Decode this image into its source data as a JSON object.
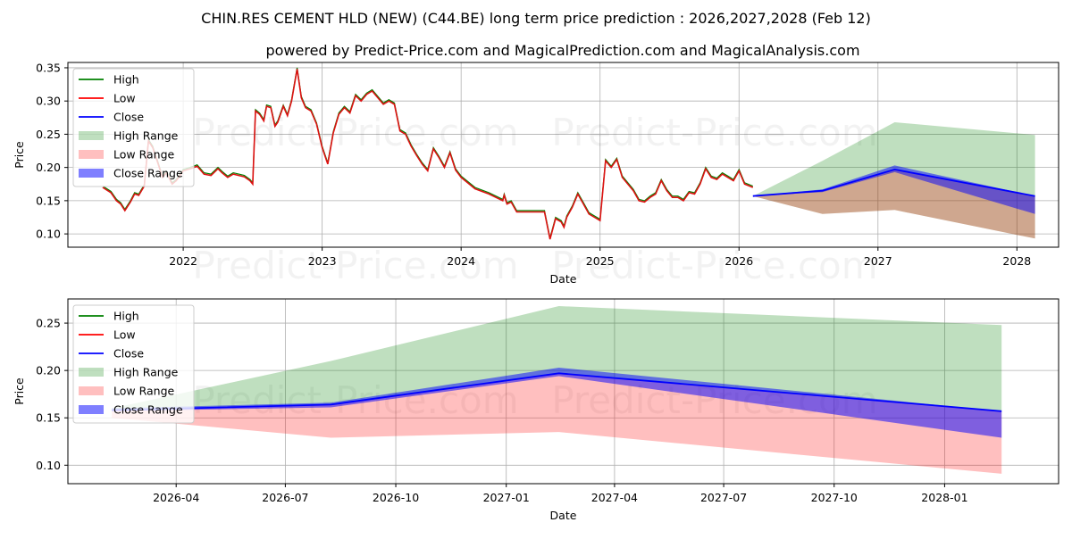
{
  "title": "CHIN.RES CEMENT HLD (NEW) (C44.BE) long term price prediction : 2026,2027,2028 (Feb 12)",
  "subtitle": "powered by Predict-Price.com and MagicalPrediction.com and MagicalAnalysis.com",
  "watermark": "Predict-Price.com",
  "colors": {
    "high": "#008000",
    "low": "#ff0000",
    "close": "#0000ff",
    "high_range": "#008000",
    "low_range": "#ff0000",
    "close_range": "#0000ff",
    "grid": "#b0b0b0"
  },
  "chart_data": [
    {
      "type": "line",
      "id": "history",
      "xlabel": "Date",
      "ylabel": "Price",
      "xlim": [
        2021.17,
        2028.3
      ],
      "ylim": [
        0.08,
        0.358
      ],
      "grid": true,
      "legend_position": "top-left",
      "xticks": [
        {
          "value": 2022,
          "label": "2022"
        },
        {
          "value": 2023,
          "label": "2023"
        },
        {
          "value": 2024,
          "label": "2024"
        },
        {
          "value": 2025,
          "label": "2025"
        },
        {
          "value": 2026,
          "label": "2026"
        },
        {
          "value": 2027,
          "label": "2027"
        },
        {
          "value": 2028,
          "label": "2028"
        }
      ],
      "yticks": [
        {
          "value": 0.1,
          "label": "0.10"
        },
        {
          "value": 0.15,
          "label": "0.15"
        },
        {
          "value": 0.2,
          "label": "0.20"
        },
        {
          "value": 0.25,
          "label": "0.25"
        },
        {
          "value": 0.3,
          "label": "0.30"
        },
        {
          "value": 0.35,
          "label": "0.35"
        }
      ],
      "legend": [
        "High",
        "Low",
        "Close",
        "High Range",
        "Low Range",
        "Close Range"
      ],
      "history_x": [
        2021.42,
        2021.48,
        2021.52,
        2021.55,
        2021.58,
        2021.62,
        2021.65,
        2021.68,
        2021.72,
        2021.75,
        2021.78,
        2021.82,
        2021.85,
        2021.88,
        2021.92,
        2021.95,
        2022.0,
        2022.05,
        2022.1,
        2022.15,
        2022.2,
        2022.25,
        2022.28,
        2022.32,
        2022.36,
        2022.4,
        2022.44,
        2022.48,
        2022.5,
        2022.52,
        2022.55,
        2022.58,
        2022.6,
        2022.63,
        2022.66,
        2022.68,
        2022.7,
        2022.72,
        2022.75,
        2022.78,
        2022.82,
        2022.85,
        2022.88,
        2022.92,
        2022.96,
        2023.0,
        2023.04,
        2023.08,
        2023.12,
        2023.16,
        2023.2,
        2023.24,
        2023.28,
        2023.32,
        2023.36,
        2023.4,
        2023.44,
        2023.48,
        2023.52,
        2023.56,
        2023.6,
        2023.64,
        2023.68,
        2023.72,
        2023.76,
        2023.8,
        2023.84,
        2023.88,
        2023.92,
        2023.96,
        2024.0,
        2024.1,
        2024.2,
        2024.3,
        2024.31,
        2024.33,
        2024.36,
        2024.4,
        2024.44,
        2024.48,
        2024.52,
        2024.56,
        2024.6,
        2024.64,
        2024.68,
        2024.72,
        2024.74,
        2024.76,
        2024.8,
        2024.84,
        2024.88,
        2024.92,
        2024.96,
        2025.0,
        2025.04,
        2025.08,
        2025.12,
        2025.16,
        2025.2,
        2025.24,
        2025.28,
        2025.32,
        2025.36,
        2025.4,
        2025.44,
        2025.48,
        2025.52,
        2025.56,
        2025.6,
        2025.64,
        2025.68,
        2025.72,
        2025.76,
        2025.8,
        2025.84,
        2025.88,
        2025.92,
        2025.96,
        2026.0,
        2026.04,
        2026.1
      ],
      "history_y": [
        0.17,
        0.162,
        0.15,
        0.145,
        0.135,
        0.148,
        0.16,
        0.158,
        0.172,
        0.24,
        0.23,
        0.205,
        0.185,
        0.192,
        0.175,
        0.18,
        0.195,
        0.198,
        0.202,
        0.19,
        0.188,
        0.198,
        0.192,
        0.185,
        0.19,
        0.188,
        0.186,
        0.18,
        0.175,
        0.285,
        0.28,
        0.27,
        0.292,
        0.29,
        0.262,
        0.268,
        0.28,
        0.292,
        0.278,
        0.3,
        0.348,
        0.305,
        0.29,
        0.285,
        0.265,
        0.23,
        0.205,
        0.252,
        0.28,
        0.29,
        0.282,
        0.308,
        0.3,
        0.31,
        0.315,
        0.305,
        0.295,
        0.3,
        0.295,
        0.255,
        0.25,
        0.232,
        0.218,
        0.205,
        0.195,
        0.228,
        0.215,
        0.2,
        0.222,
        0.196,
        0.185,
        0.168,
        0.16,
        0.15,
        0.158,
        0.145,
        0.148,
        0.133,
        0.133,
        0.133,
        0.133,
        0.133,
        0.133,
        0.092,
        0.123,
        0.118,
        0.11,
        0.125,
        0.14,
        0.16,
        0.145,
        0.13,
        0.125,
        0.12,
        0.21,
        0.2,
        0.212,
        0.185,
        0.175,
        0.165,
        0.15,
        0.148,
        0.155,
        0.16,
        0.18,
        0.165,
        0.155,
        0.155,
        0.15,
        0.162,
        0.16,
        0.175,
        0.198,
        0.185,
        0.182,
        0.19,
        0.185,
        0.18,
        0.195,
        0.175,
        0.17,
        0.165,
        0.16,
        0.157,
        0.157
      ],
      "close_x": [
        2026.1,
        2026.6,
        2027.12,
        2028.13
      ],
      "close_y": [
        0.157,
        0.165,
        0.197,
        0.157
      ],
      "high_range_upper": [
        0.157,
        0.21,
        0.268,
        0.249
      ],
      "low_range_lower": [
        0.157,
        0.13,
        0.136,
        0.093
      ],
      "close_range_upper": [
        0.157,
        0.167,
        0.203,
        0.157
      ],
      "close_range_lower": [
        0.157,
        0.163,
        0.193,
        0.13
      ]
    },
    {
      "type": "area",
      "id": "forecast",
      "xlabel": "Date",
      "ylabel": "Price",
      "xlim": [
        2026.0,
        2028.26
      ],
      "ylim": [
        0.0805,
        0.2755
      ],
      "grid": true,
      "legend_position": "top-left",
      "xticks": [
        {
          "value": 2026.247,
          "label": "2026-04"
        },
        {
          "value": 2026.496,
          "label": "2026-07"
        },
        {
          "value": 2026.748,
          "label": "2026-10"
        },
        {
          "value": 2027.0,
          "label": "2027-01"
        },
        {
          "value": 2027.247,
          "label": "2027-04"
        },
        {
          "value": 2027.496,
          "label": "2027-07"
        },
        {
          "value": 2027.748,
          "label": "2027-10"
        },
        {
          "value": 2028.0,
          "label": "2028-01"
        }
      ],
      "yticks": [
        {
          "value": 0.1,
          "label": "0.10"
        },
        {
          "value": 0.15,
          "label": "0.15"
        },
        {
          "value": 0.2,
          "label": "0.20"
        },
        {
          "value": 0.25,
          "label": "0.25"
        }
      ],
      "legend": [
        "High",
        "Low",
        "Close",
        "High Range",
        "Low Range",
        "Close Range"
      ],
      "x": [
        2026.1,
        2026.6,
        2027.12,
        2028.13
      ],
      "close": [
        0.158,
        0.164,
        0.197,
        0.157
      ],
      "high_range_upper": [
        0.16,
        0.21,
        0.268,
        0.248
      ],
      "low_range_lower": [
        0.15,
        0.129,
        0.135,
        0.091
      ],
      "close_range_upper": [
        0.16,
        0.166,
        0.203,
        0.157
      ],
      "close_range_lower": [
        0.157,
        0.161,
        0.194,
        0.129
      ]
    }
  ]
}
